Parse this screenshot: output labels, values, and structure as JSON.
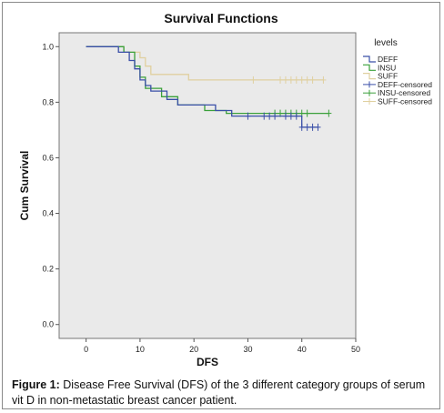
{
  "caption": {
    "label": "Figure 1:",
    "text": " Disease Free Survival (DFS) of the 3 different category groups of serum vit D in non-metastatic breast cancer patient."
  },
  "chart_data": {
    "type": "line",
    "title": "Survival Functions",
    "xlabel": "DFS",
    "ylabel": "Cum Survival",
    "xlim": [
      -5,
      50
    ],
    "ylim": [
      -0.05,
      1.05
    ],
    "x_ticks": [
      0,
      10,
      20,
      30,
      40,
      50
    ],
    "y_ticks": [
      0.0,
      0.2,
      0.4,
      0.6,
      0.8,
      1.0
    ],
    "x_tick_labels": [
      "0",
      "10",
      "20",
      "30",
      "40",
      "50"
    ],
    "y_tick_labels": [
      "0.0",
      "0.2",
      "0.4",
      "0.6",
      "0.8",
      "1.0"
    ],
    "grid": false,
    "legend_title": "levels",
    "legend_position": "right",
    "colors": {
      "DEFF": "#3a4fa8",
      "INSU": "#3aa03a",
      "SUFF": "#e0d0a0",
      "plot_bg": "#eaeaea"
    },
    "series": [
      {
        "name": "DEFF",
        "color": "#3a4fa8",
        "steps": [
          [
            0,
            1.0
          ],
          [
            6,
            1.0
          ],
          [
            6,
            0.98
          ],
          [
            8,
            0.98
          ],
          [
            8,
            0.95
          ],
          [
            9,
            0.95
          ],
          [
            9,
            0.92
          ],
          [
            10,
            0.92
          ],
          [
            10,
            0.88
          ],
          [
            11,
            0.88
          ],
          [
            11,
            0.86
          ],
          [
            12,
            0.86
          ],
          [
            12,
            0.84
          ],
          [
            15,
            0.84
          ],
          [
            15,
            0.81
          ],
          [
            17,
            0.81
          ],
          [
            17,
            0.79
          ],
          [
            24,
            0.79
          ],
          [
            24,
            0.77
          ],
          [
            27,
            0.77
          ],
          [
            27,
            0.75
          ],
          [
            40,
            0.75
          ],
          [
            40,
            0.71
          ],
          [
            43,
            0.71
          ]
        ],
        "censored": [
          [
            30,
            0.75
          ],
          [
            33,
            0.75
          ],
          [
            34,
            0.75
          ],
          [
            35,
            0.75
          ],
          [
            37,
            0.75
          ],
          [
            38,
            0.75
          ],
          [
            39,
            0.75
          ],
          [
            40,
            0.71
          ],
          [
            41,
            0.71
          ],
          [
            42,
            0.71
          ],
          [
            43,
            0.71
          ]
        ]
      },
      {
        "name": "INSU",
        "color": "#3aa03a",
        "steps": [
          [
            0,
            1.0
          ],
          [
            7,
            1.0
          ],
          [
            7,
            0.98
          ],
          [
            9,
            0.98
          ],
          [
            9,
            0.93
          ],
          [
            10,
            0.93
          ],
          [
            10,
            0.89
          ],
          [
            11,
            0.89
          ],
          [
            11,
            0.85
          ],
          [
            14,
            0.85
          ],
          [
            14,
            0.82
          ],
          [
            17,
            0.82
          ],
          [
            17,
            0.79
          ],
          [
            22,
            0.79
          ],
          [
            22,
            0.77
          ],
          [
            26,
            0.77
          ],
          [
            26,
            0.76
          ],
          [
            45,
            0.76
          ]
        ],
        "censored": [
          [
            35,
            0.76
          ],
          [
            36,
            0.76
          ],
          [
            37,
            0.76
          ],
          [
            38,
            0.76
          ],
          [
            39,
            0.76
          ],
          [
            40,
            0.76
          ],
          [
            41,
            0.76
          ],
          [
            45,
            0.76
          ]
        ]
      },
      {
        "name": "SUFF",
        "color": "#e0d0a0",
        "steps": [
          [
            0,
            1.0
          ],
          [
            7,
            1.0
          ],
          [
            7,
            0.98
          ],
          [
            10,
            0.98
          ],
          [
            10,
            0.96
          ],
          [
            11,
            0.96
          ],
          [
            11,
            0.93
          ],
          [
            12,
            0.93
          ],
          [
            12,
            0.9
          ],
          [
            19,
            0.9
          ],
          [
            19,
            0.88
          ],
          [
            44,
            0.88
          ]
        ],
        "censored": [
          [
            31,
            0.88
          ],
          [
            36,
            0.88
          ],
          [
            37,
            0.88
          ],
          [
            38,
            0.88
          ],
          [
            39,
            0.88
          ],
          [
            40,
            0.88
          ],
          [
            41,
            0.88
          ],
          [
            42,
            0.88
          ],
          [
            44,
            0.88
          ]
        ]
      }
    ],
    "legend_entries": [
      "DEFF",
      "INSU",
      "SUFF",
      "DEFF-censored",
      "INSU-censored",
      "SUFF-censored"
    ]
  }
}
